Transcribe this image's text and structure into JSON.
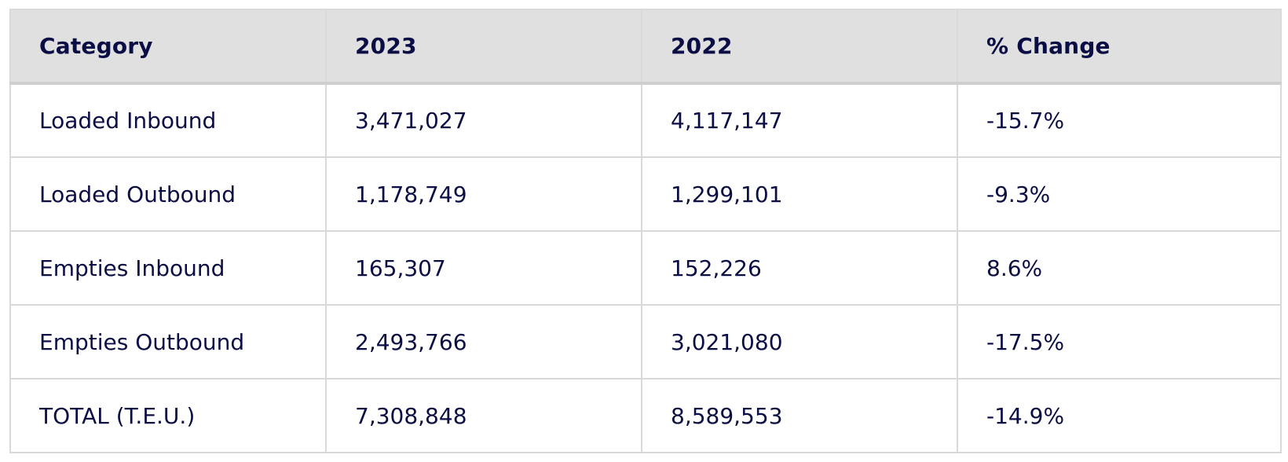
{
  "table": {
    "headers": [
      "Category",
      "2023",
      "2022",
      "% Change"
    ],
    "rows": [
      [
        "Loaded Inbound",
        "3,471,027",
        "4,117,147",
        "-15.7%"
      ],
      [
        "Loaded Outbound",
        "1,178,749",
        "1,299,101",
        "-9.3%"
      ],
      [
        "Empties Inbound",
        "165,307",
        "152,226",
        "8.6%"
      ],
      [
        "Empties Outbound",
        "2,493,766",
        "3,021,080",
        "-17.5%"
      ],
      [
        "TOTAL (T.E.U.)",
        "7,308,848",
        "8,589,553",
        "-14.9%"
      ]
    ]
  },
  "colors": {
    "text": "#0b0d45",
    "header_bg": "#e0e0e0",
    "border": "#d9d9d9",
    "body_bg": "#ffffff"
  }
}
